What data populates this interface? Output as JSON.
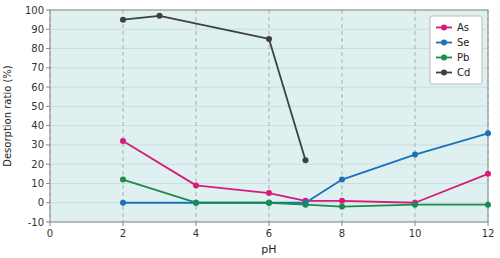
{
  "chart_data": {
    "type": "line",
    "xlabel": "pH",
    "ylabel": "Desorption ratio (%)",
    "xlim": [
      0,
      12
    ],
    "ylim": [
      -10,
      100
    ],
    "xticks": [
      0,
      2,
      4,
      6,
      8,
      10,
      12
    ],
    "yticks": [
      -10,
      0,
      10,
      20,
      30,
      40,
      50,
      60,
      70,
      80,
      90,
      100
    ],
    "grid": true,
    "legend": "upper right",
    "marker": "circle",
    "line_style": "solid",
    "series": [
      {
        "name": "As",
        "color": "#d81b7a",
        "x": [
          2,
          4,
          6,
          7,
          8,
          10,
          12
        ],
        "values": [
          32,
          9,
          5,
          1,
          1,
          0,
          15
        ]
      },
      {
        "name": "Se",
        "color": "#1a72b8",
        "x": [
          2,
          4,
          6,
          7,
          8,
          10,
          12
        ],
        "values": [
          0,
          0,
          0,
          0,
          12,
          25,
          36
        ]
      },
      {
        "name": "Pb",
        "color": "#1a8c4e",
        "x": [
          2,
          4,
          6,
          7,
          8,
          10,
          12
        ],
        "values": [
          12,
          0,
          0,
          -1,
          -2,
          -1,
          -1
        ]
      },
      {
        "name": "Cd",
        "color": "#404040",
        "x": [
          2,
          3,
          6,
          7
        ],
        "values": [
          95,
          97,
          85,
          22
        ]
      }
    ]
  }
}
